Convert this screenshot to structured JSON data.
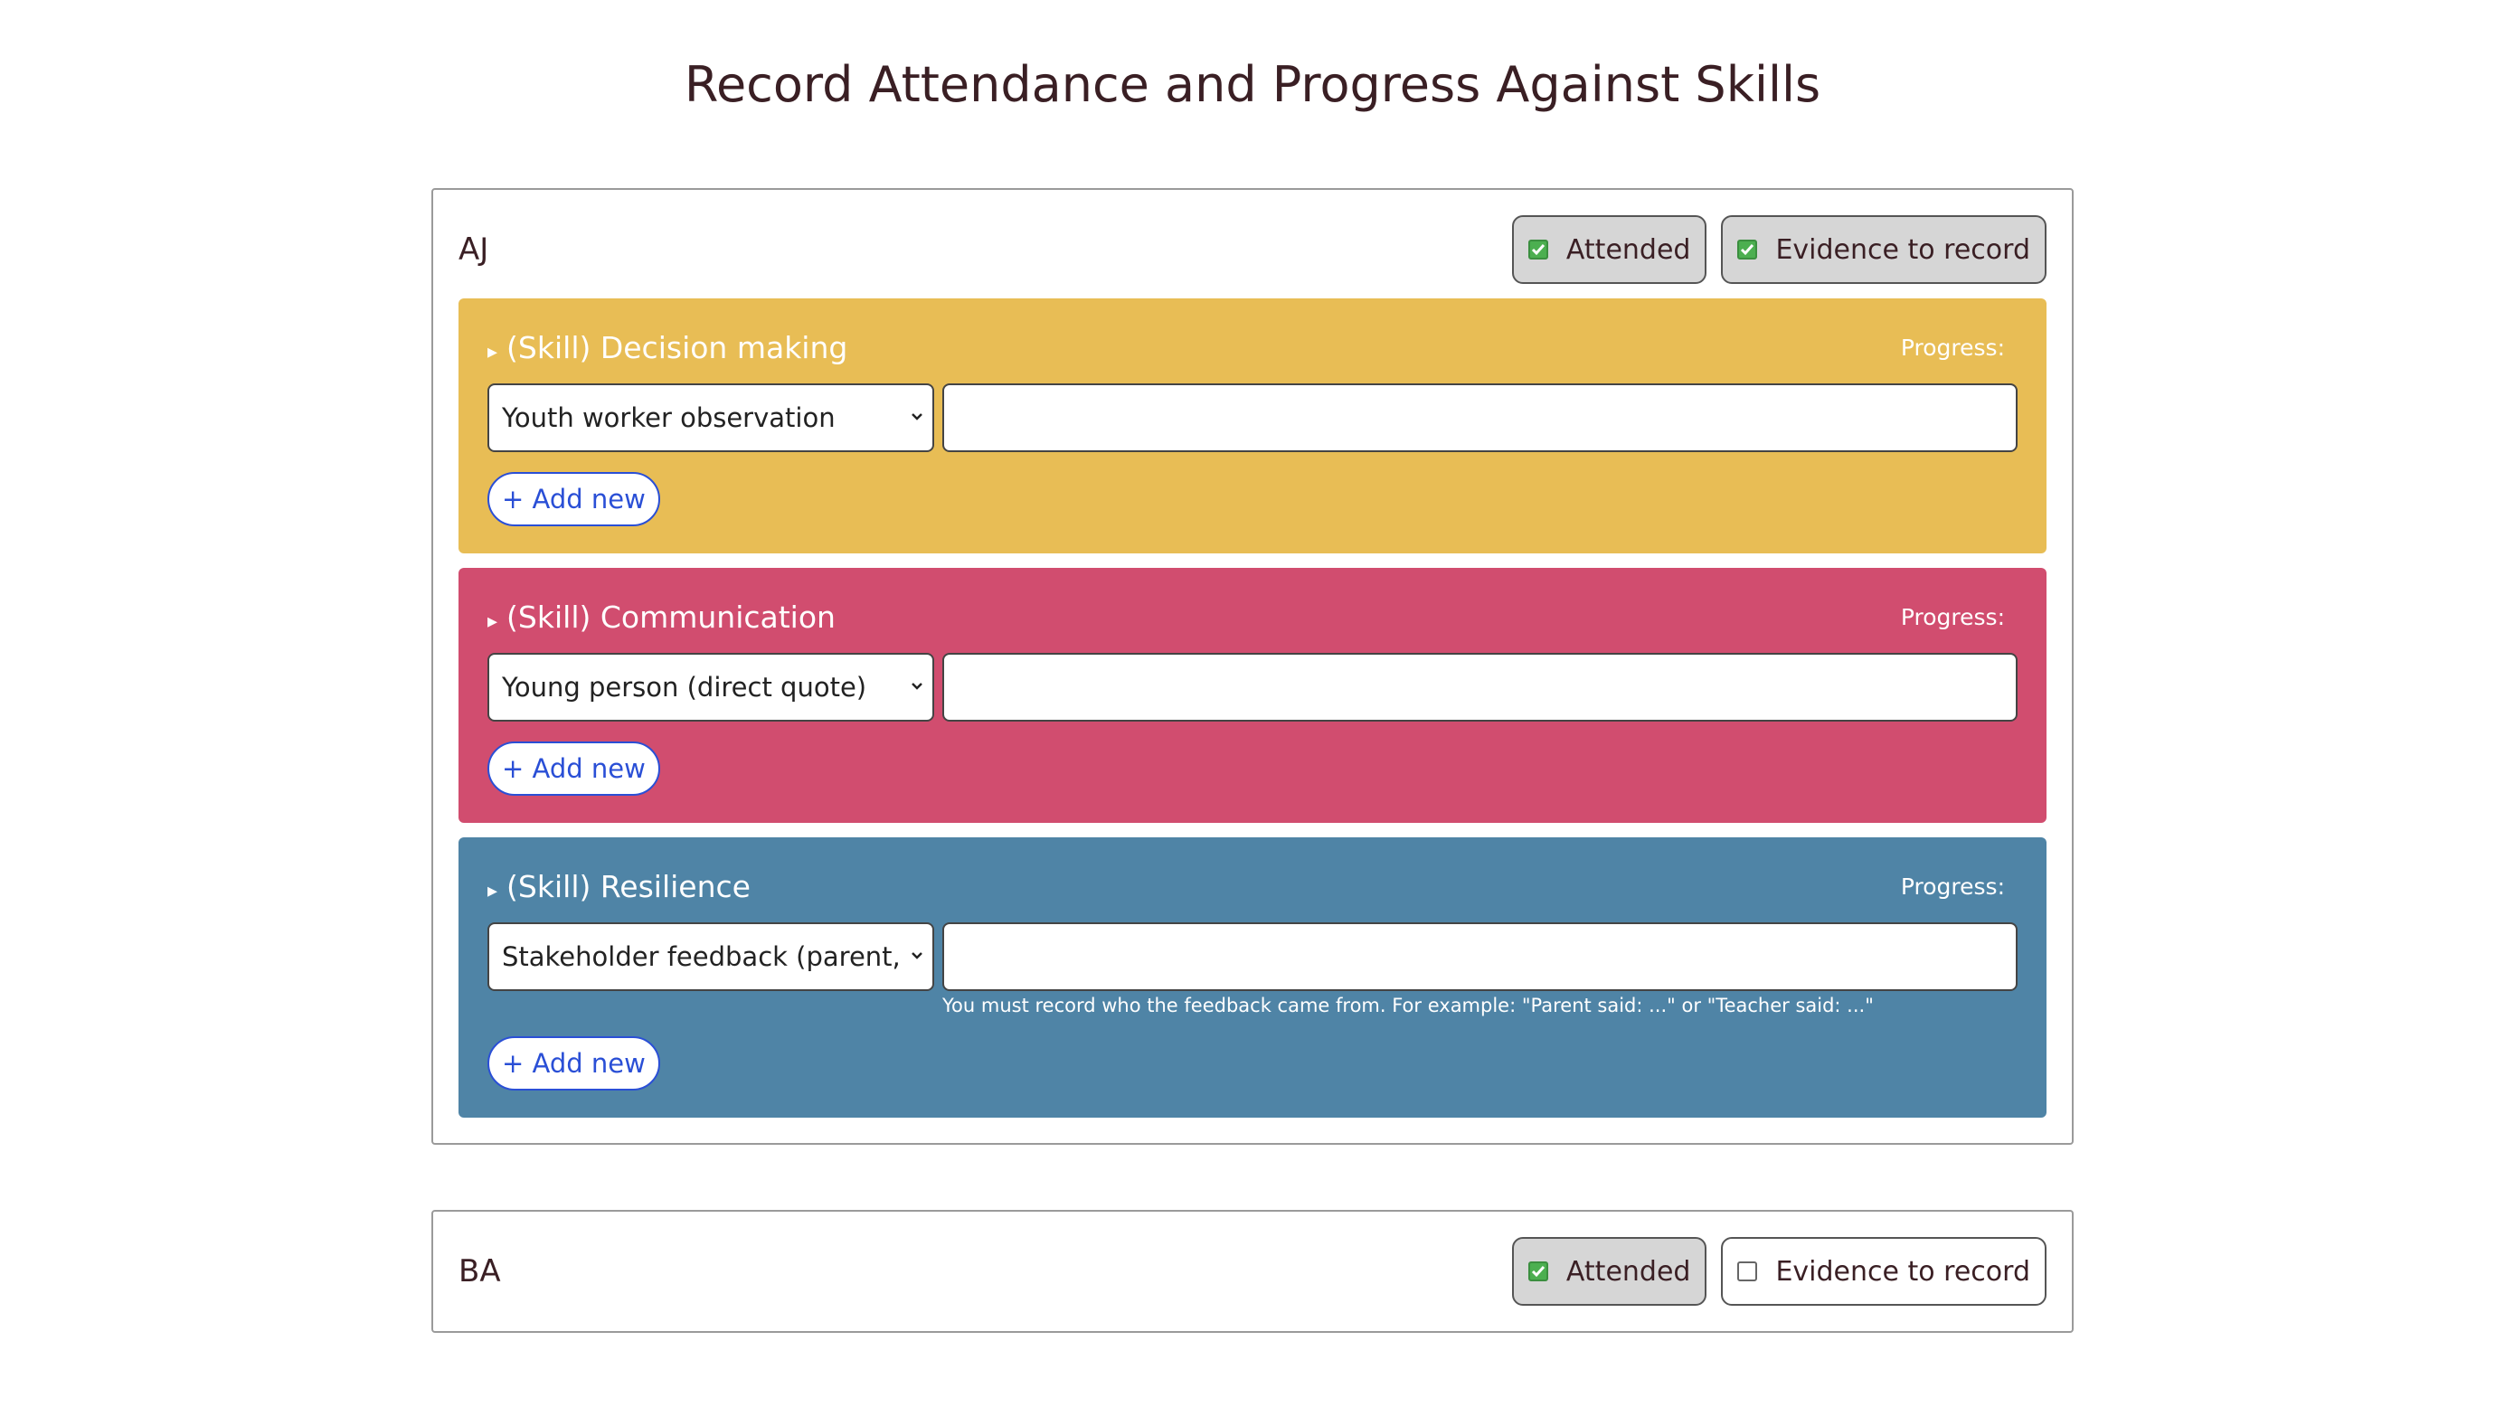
{
  "header": {
    "title": "Record Attendance and Progress Against Skills"
  },
  "students": [
    {
      "name": "AJ",
      "attended": {
        "label": "Attended",
        "checked": true
      },
      "evidence": {
        "label": "Evidence to record",
        "checked": true
      },
      "skills": [
        {
          "title": "(Skill) Decision making",
          "progress": "Progress:",
          "color": "#e8bd55",
          "source": "Youth worker observation",
          "add": "+ Add new"
        },
        {
          "title": "(Skill) Communication",
          "progress": "Progress:",
          "color": "#d14d6f",
          "source": "Young person (direct quote)",
          "add": "+ Add new"
        },
        {
          "title": "(Skill) Resilience",
          "progress": "Progress:",
          "color": "#4f84a6",
          "source": "Stakeholder feedback (parent,",
          "note": "You must record who the feedback came from. For example: \"Parent said: ...\" or \"Teacher said: ...\"",
          "add": "+ Add new"
        }
      ]
    },
    {
      "name": "BA",
      "attended": {
        "label": "Attended",
        "checked": true
      },
      "evidence": {
        "label": "Evidence to record",
        "checked": false
      },
      "skills": []
    }
  ]
}
